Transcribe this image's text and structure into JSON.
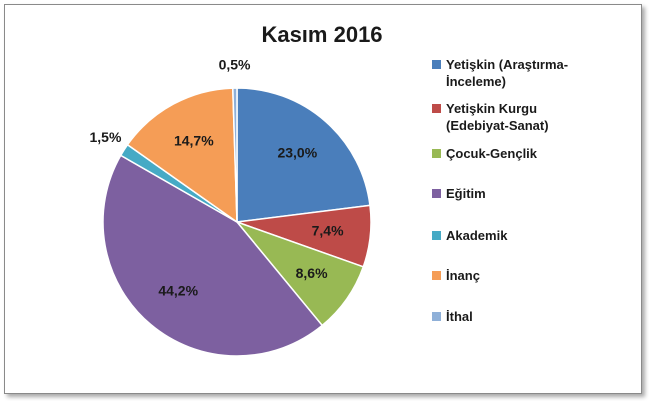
{
  "chart_data": {
    "type": "pie",
    "title": "Kasım 2016",
    "categories": [
      "Yetişkin (Araştırma-İnceleme)",
      "Yetişkin Kurgu (Edebiyat-Sanat)",
      "Çocuk-Gençlik",
      "Eğitim",
      "Akademik",
      "İnanç",
      "İthal"
    ],
    "values": [
      23.0,
      7.4,
      8.6,
      44.2,
      1.5,
      14.7,
      0.5
    ],
    "value_labels": [
      "23,0%",
      "7,4%",
      "8,6%",
      "44,2%",
      "1,5%",
      "14,7%",
      "0,5%"
    ],
    "colors": [
      "#4a7ebb",
      "#be4b48",
      "#98b954",
      "#7d60a0",
      "#46aac5",
      "#f59d56",
      "#8fb0d8"
    ],
    "legend": "right"
  }
}
